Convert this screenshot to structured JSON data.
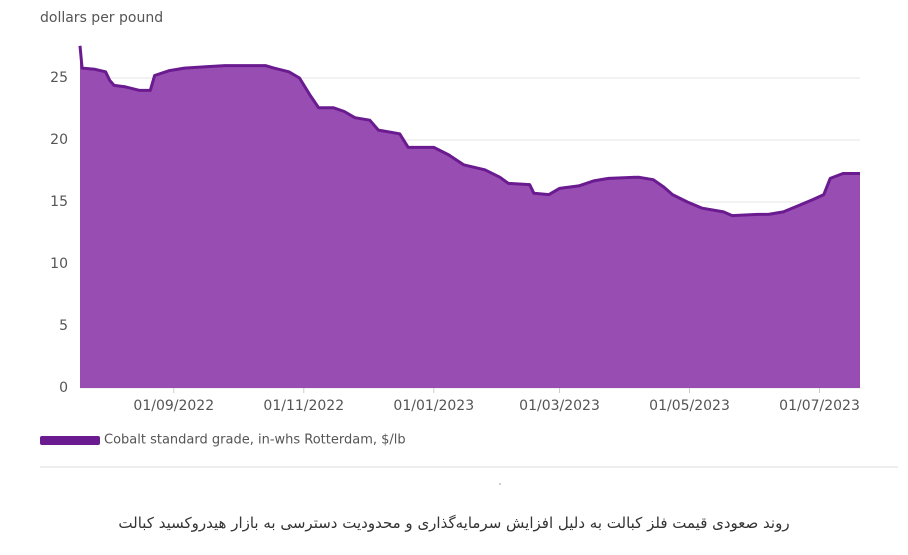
{
  "chart_data": {
    "type": "area",
    "y_label": "dollars per pound",
    "x": [
      "19/07/2022",
      "20/07/2022",
      "26/07/2022",
      "31/07/2022",
      "02/08/2022",
      "04/08/2022",
      "09/08/2022",
      "16/08/2022",
      "21/08/2022",
      "23/08/2022",
      "30/08/2022",
      "06/09/2022",
      "16/09/2022",
      "25/09/2022",
      "14/10/2022",
      "18/10/2022",
      "25/10/2022",
      "30/10/2022",
      "04/11/2022",
      "08/11/2022",
      "15/11/2022",
      "20/11/2022",
      "25/11/2022",
      "02/12/2022",
      "06/12/2022",
      "16/12/2022",
      "20/12/2022",
      "01/01/2023",
      "08/01/2023",
      "15/01/2023",
      "25/01/2023",
      "01/02/2023",
      "05/02/2023",
      "15/02/2023",
      "17/02/2023",
      "24/02/2023",
      "01/03/2023",
      "10/03/2023",
      "17/03/2023",
      "24/03/2023",
      "07/04/2023",
      "14/04/2023",
      "19/04/2023",
      "23/04/2023",
      "30/04/2023",
      "07/05/2023",
      "17/05/2023",
      "21/05/2023",
      "02/06/2023",
      "07/06/2023",
      "14/06/2023",
      "21/06/2023",
      "28/06/2023",
      "03/07/2023",
      "06/07/2023",
      "12/07/2023",
      "20/07/2023"
    ],
    "series": [
      {
        "name": "Cobalt standard grade, in-whs Rotterdam, $/lb",
        "color": "#6a1b8f",
        "fill": "#984db3",
        "values": [
          27.6,
          25.8,
          25.7,
          25.5,
          24.8,
          24.4,
          24.3,
          24.0,
          24.0,
          25.2,
          25.6,
          25.8,
          25.9,
          26.0,
          26.0,
          25.8,
          25.5,
          25.0,
          23.6,
          22.6,
          22.6,
          22.3,
          21.8,
          21.6,
          20.8,
          20.5,
          19.4,
          19.4,
          18.8,
          18.0,
          17.6,
          17.0,
          16.5,
          16.4,
          15.7,
          15.6,
          16.1,
          16.3,
          16.7,
          16.9,
          17.0,
          16.8,
          16.2,
          15.6,
          15.0,
          14.5,
          14.2,
          13.9,
          14.0,
          14.0,
          14.2,
          14.7,
          15.2,
          15.6,
          16.9,
          17.3,
          17.3
        ]
      }
    ],
    "xlim": [
      "19/07/2022",
      "20/07/2023"
    ],
    "xticks": [
      "01/09/2022",
      "01/11/2022",
      "01/01/2023",
      "01/03/2023",
      "01/05/2023",
      "01/07/2023"
    ],
    "ylim": [
      0,
      27.5
    ],
    "yticks": [
      0,
      5,
      10,
      15,
      20,
      25
    ],
    "grid": true
  },
  "caption": "روند صعودی قیمت فلز کبالت به دلیل افزایش سرمایه‌گذاری و محدودیت دسترسی به بازار هیدروکسید کبالت"
}
